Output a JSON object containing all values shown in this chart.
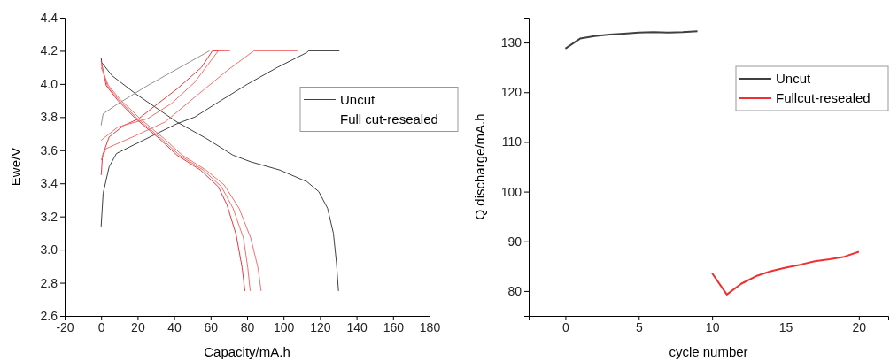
{
  "chart_data": [
    {
      "type": "line",
      "xlabel": "Capacity/mA.h",
      "ylabel": "Ewe/V",
      "xlim": [
        -20,
        180
      ],
      "ylim": [
        2.6,
        4.4
      ],
      "xticks": [
        -20,
        0,
        20,
        40,
        60,
        80,
        100,
        120,
        140,
        160,
        180
      ],
      "yticks": [
        {
          "value": 2.6,
          "label": "2.6"
        },
        {
          "value": 2.8,
          "label": "2.8"
        },
        {
          "value": 3.0,
          "label": "3.0"
        },
        {
          "value": 3.2,
          "label": "3.2"
        },
        {
          "value": 3.4,
          "label": "3.4"
        },
        {
          "value": 3.6,
          "label": "3.6"
        },
        {
          "value": 3.8,
          "label": "3.8"
        },
        {
          "value": 4.0,
          "label": "4.0"
        },
        {
          "value": 4.2,
          "label": "4.2"
        },
        {
          "value": 4.4,
          "label": "4.4"
        }
      ],
      "legend": "right",
      "grid": false,
      "line_style": "solid",
      "marker": "none",
      "series": [
        {
          "name": "Uncut",
          "color": "#404040",
          "x": [
            0,
            0.3,
            6,
            19,
            41.6,
            57.8,
            72.3,
            82,
            98,
            112.8,
            119.3,
            124.1,
            127.3,
            129,
            130.1
          ],
          "values": [
            4.16,
            4.13,
            4.05,
            3.94,
            3.77,
            3.67,
            3.57,
            3.53,
            3.48,
            3.41,
            3.35,
            3.25,
            3.1,
            2.92,
            2.75
          ]
        },
        {
          "color": "#404040",
          "x": [
            0,
            1.1,
            4.4,
            8.4,
            15.7,
            28.6,
            41.6,
            51.3,
            64.2,
            80.4,
            96.6,
            112.8,
            113.6,
            130.6
          ],
          "values": [
            3.14,
            3.34,
            3.5,
            3.58,
            3.62,
            3.69,
            3.76,
            3.8,
            3.89,
            4.0,
            4.1,
            4.19,
            4.2,
            4.2
          ]
        },
        {
          "color": "#909090",
          "x": [
            0,
            1.1,
            9.2,
            25.4,
            41.6,
            57.8,
            59.4
          ],
          "values": [
            3.75,
            3.82,
            3.88,
            3.99,
            4.09,
            4.19,
            4.2
          ]
        },
        {
          "name": "Full cut-resealed",
          "color": "#e8383d",
          "x": [
            0,
            0.8,
            4.4,
            12.5,
            20.6,
            28.6,
            41.6,
            55,
            61,
            67.5
          ],
          "values": [
            3.45,
            3.57,
            3.68,
            3.75,
            3.79,
            3.86,
            3.97,
            4.1,
            4.2,
            4.2
          ]
        },
        {
          "color": "#f07070",
          "x": [
            0,
            9.2,
            25.4,
            38.3,
            51.3,
            64.2,
            70.7
          ],
          "values": [
            3.66,
            3.74,
            3.79,
            3.88,
            4.01,
            4.2,
            4.2
          ]
        },
        {
          "color": "#f07070",
          "x": [
            0,
            2.8,
            17.3,
            35,
            51.3,
            69,
            83.7,
            107.6
          ],
          "values": [
            3.54,
            3.61,
            3.68,
            3.77,
            3.92,
            4.08,
            4.2,
            4.2
          ]
        },
        {
          "color": "#e8383d",
          "x": [
            0,
            2.8,
            9.2,
            19,
            31.9,
            41.6,
            54.5,
            64.2,
            69,
            74,
            77.3,
            78.8
          ],
          "values": [
            4.14,
            3.99,
            3.9,
            3.79,
            3.67,
            3.57,
            3.48,
            3.38,
            3.27,
            3.09,
            2.89,
            2.75
          ]
        },
        {
          "color": "#f07070",
          "x": [
            0,
            3.4,
            10,
            20,
            33,
            43,
            56,
            65.9,
            72.3,
            78,
            80.4,
            81.7
          ],
          "values": [
            4.12,
            3.99,
            3.9,
            3.79,
            3.67,
            3.57,
            3.48,
            3.38,
            3.25,
            3.07,
            2.89,
            2.75
          ]
        },
        {
          "color": "#f07070",
          "x": [
            0,
            4,
            11,
            21.5,
            34.5,
            44.5,
            57.5,
            67.5,
            75.6,
            82,
            86,
            87.7
          ],
          "values": [
            4.1,
            3.99,
            3.9,
            3.79,
            3.67,
            3.57,
            3.48,
            3.39,
            3.25,
            3.07,
            2.89,
            2.75
          ]
        }
      ]
    },
    {
      "type": "line",
      "xlabel": "cycle number",
      "ylabel": "Q discharge/mA.h",
      "xlim": [
        -2.5,
        22
      ],
      "ylim": [
        75,
        135
      ],
      "xticks": [
        0,
        5,
        10,
        15,
        20
      ],
      "yticks": [
        80,
        90,
        100,
        110,
        120,
        130
      ],
      "legend": "top right",
      "grid": false,
      "line_style": "solid",
      "marker": "none",
      "series": [
        {
          "name": "Uncut",
          "color": "#404040",
          "x": [
            0,
            1,
            2,
            3,
            4,
            5,
            6,
            7,
            8,
            9
          ],
          "values": [
            128.8,
            130.8,
            131.3,
            131.6,
            131.8,
            132.0,
            132.1,
            132.0,
            132.1,
            132.3
          ]
        },
        {
          "name": "Fullcut-resealed",
          "color": "#f03030",
          "x": [
            10,
            11,
            12,
            13,
            14,
            15,
            16,
            17,
            18,
            19,
            20
          ],
          "values": [
            83.6,
            79.3,
            81.5,
            83.0,
            84.0,
            84.7,
            85.3,
            86.0,
            86.4,
            86.9,
            87.9
          ]
        }
      ]
    }
  ]
}
